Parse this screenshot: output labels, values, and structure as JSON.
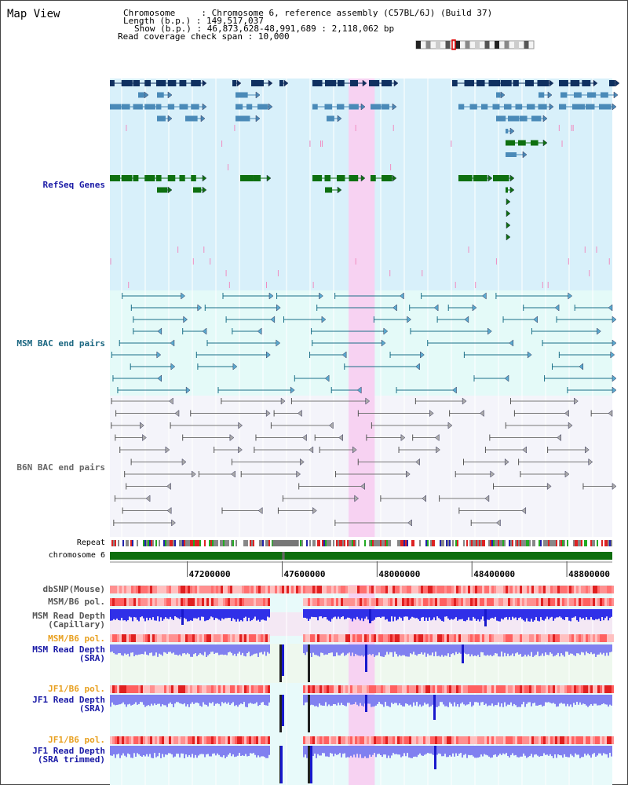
{
  "title": "Map View",
  "info": {
    "chromosome_label": "Chromosome    ",
    "chromosome_value": "Chromosome 6, reference assembly (C57BL/6J) (Build 37)",
    "length_label": "Length (b.p.)",
    "length_value": "149,517,037",
    "show_label": "Show (b.p.)",
    "show_value": "46,873,628-48,991,689 : 2,118,062 bp",
    "coverage_label": "Read coverage check span",
    "coverage_value": "10,000"
  },
  "view": {
    "start_bp": 46873628,
    "end_bp": 48991689,
    "highlight_bp": [
      47880000,
      47990000
    ],
    "gap_bp": [
      47560000,
      47670000
    ]
  },
  "axis_ticks": [
    "47200000",
    "47600000",
    "48000000",
    "48400000",
    "48800000"
  ],
  "tracks": {
    "refseq": "RefSeq Genes",
    "msm_bac": "MSM BAC end pairs",
    "b6n_bac": "B6N BAC end pairs",
    "repeat": "Repeat",
    "chromosome": "chromosome 6",
    "dbsnp": "dbSNP(Mouse)",
    "msm_b6_pol_1": "MSM/B6 pol.",
    "msm_read_depth_cap": "MSM Read Depth\n(Capillary)",
    "msm_b6_pol_2": "MSM/B6 pol.",
    "msm_read_depth_sra": "MSM Read Depth\n(SRA)",
    "jf1_b6_pol_1": "JF1/B6 pol.",
    "jf1_read_depth_sra": "JF1 Read Depth\n(SRA)",
    "jf1_b6_pol_2": "JF1/B6 pol.",
    "jf1_read_depth_trimmed": "JF1 Read Depth\n(SRA trimmed)"
  },
  "colors": {
    "refseq_bg": "#d8f0fa",
    "msm_bg": "#e4faf8",
    "b6n_bg": "#f4f4fa",
    "highlight": "#f7d2f2",
    "gene_dark": "#0f3060",
    "gene_blue": "#4a8ab8",
    "gene_green": "#0e7010",
    "msm_pair": "#1a6f87",
    "b6n_pair": "#777777",
    "chromosome": "#0e6e0e",
    "read_depth": "#3030e8",
    "read_depth_light": "#8080f0",
    "pol_red": "#ff6060"
  },
  "icons": {
    "ideogram": "chromosome-ideogram-icon"
  }
}
